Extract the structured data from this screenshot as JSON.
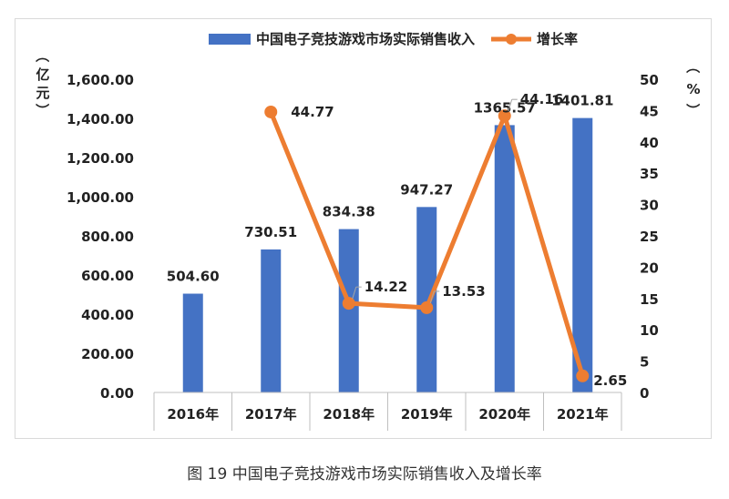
{
  "caption": "图 19 中国电子竞技游戏市场实际销售收入及增长率",
  "chart_data": {
    "type": "bar",
    "categories": [
      "2016年",
      "2017年",
      "2018年",
      "2019年",
      "2020年",
      "2021年"
    ],
    "series": [
      {
        "name": "中国电子竞技游戏市场实际销售收入",
        "type": "bar",
        "axis": "left",
        "color": "#4472c4",
        "values": [
          504.6,
          730.51,
          834.38,
          947.27,
          1365.57,
          1401.81
        ],
        "labels": [
          "504.60",
          "730.51",
          "834.38",
          "947.27",
          "1365.57",
          "1401.81"
        ]
      },
      {
        "name": "增长率",
        "type": "line",
        "axis": "right",
        "color": "#ed7d31",
        "values": [
          null,
          44.77,
          14.22,
          13.53,
          44.16,
          2.65
        ],
        "labels": [
          "",
          "44.77",
          "14.22",
          "13.53",
          "44.16",
          "2.65"
        ]
      }
    ],
    "y_left": {
      "label": [
        "（",
        "亿",
        "元",
        "）"
      ],
      "min": 0,
      "max": 1600,
      "step": 200,
      "ticks": [
        "0.00",
        "200.00",
        "400.00",
        "600.00",
        "800.00",
        "1,000.00",
        "1,200.00",
        "1,400.00",
        "1,600.00"
      ]
    },
    "y_right": {
      "label": [
        "（",
        "%",
        "）"
      ],
      "min": 0,
      "max": 50,
      "step": 5,
      "ticks": [
        "0",
        "5",
        "10",
        "15",
        "20",
        "25",
        "30",
        "35",
        "40",
        "45",
        "50"
      ]
    },
    "legend_position": "top-center",
    "grid": false
  }
}
